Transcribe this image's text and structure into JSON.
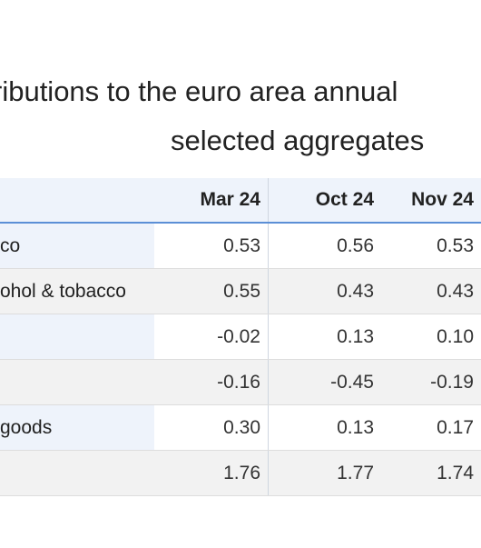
{
  "title": {
    "line1": "ributions to the euro area annual",
    "line2": "selected aggregates"
  },
  "table": {
    "headers": [
      "",
      "Mar 24",
      "Oct 24",
      "Nov 24"
    ],
    "rows": [
      {
        "label": "co",
        "values": [
          "0.53",
          "0.56",
          "0.53"
        ]
      },
      {
        "label": "ohol & tobacco",
        "values": [
          "0.55",
          "0.43",
          "0.43"
        ]
      },
      {
        "label": "",
        "values": [
          "-0.02",
          "0.13",
          "0.10"
        ]
      },
      {
        "label": "",
        "values": [
          "-0.16",
          "-0.45",
          "-0.19"
        ]
      },
      {
        "label": "goods",
        "values": [
          "0.30",
          "0.13",
          "0.17"
        ]
      },
      {
        "label": "",
        "values": [
          "1.76",
          "1.77",
          "1.74"
        ]
      }
    ]
  },
  "colors": {
    "header_bg": "#eef3fb",
    "header_rule": "#5b8fd6",
    "zebra": "#f2f2f2"
  }
}
